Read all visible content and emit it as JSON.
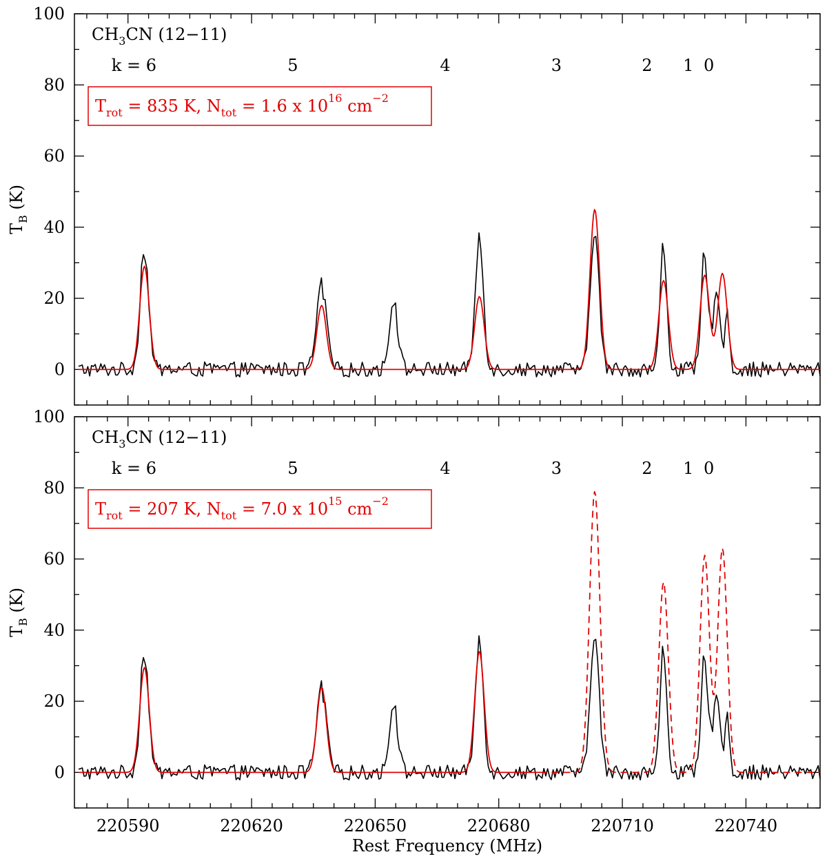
{
  "figure": {
    "xlabel": "Rest Frequency (MHz)",
    "ylabel_main": "T",
    "ylabel_sub": "B",
    "ylabel_unit": " (K)"
  },
  "chart_data": [
    {
      "type": "line",
      "panel": "top",
      "xlim": [
        220577,
        220758
      ],
      "ylim": [
        -10,
        100
      ],
      "xticks": [
        220590,
        220620,
        220650,
        220680,
        220710,
        220740
      ],
      "yticks": [
        0,
        20,
        40,
        60,
        80,
        100
      ],
      "species": {
        "main": "CH",
        "sub": "3",
        "rest": "CN (12−11)"
      },
      "k_labels": [
        {
          "text": "k = 6",
          "freq": 220586
        },
        {
          "text": "5",
          "freq": 220630
        },
        {
          "text": "4",
          "freq": 220667
        },
        {
          "text": "3",
          "freq": 220694
        },
        {
          "text": "2",
          "freq": 220716
        },
        {
          "text": "1",
          "freq": 220726
        },
        {
          "text": "0",
          "freq": 220731
        }
      ],
      "legend": {
        "t_main": "T",
        "t_sub": "rot",
        "t_rest": " = 835 K, N",
        "n_sub": "tot",
        "n_rest": " = 1.6 x 10",
        "exp": "16",
        "unit": " cm",
        "unit_exp": "−2"
      },
      "series": [
        {
          "name": "observed",
          "color": "#000000",
          "style": "solid",
          "peaks": [
            {
              "center": 220594.0,
              "amp": 34,
              "width": 1.0
            },
            {
              "center": 220637.0,
              "amp": 24,
              "width": 1.2
            },
            {
              "center": 220654.5,
              "amp": 20,
              "width": 1.0
            },
            {
              "center": 220675.3,
              "amp": 36,
              "width": 1.0
            },
            {
              "center": 220703.3,
              "amp": 41,
              "width": 1.0
            },
            {
              "center": 220720.0,
              "amp": 34,
              "width": 0.8
            },
            {
              "center": 220730.0,
              "amp": 32,
              "width": 0.8
            },
            {
              "center": 220733.0,
              "amp": 22,
              "width": 0.9
            },
            {
              "center": 220735.5,
              "amp": 16,
              "width": 0.5
            }
          ]
        },
        {
          "name": "model",
          "color": "#e00000",
          "style": "solid",
          "peaks": [
            {
              "center": 220594.0,
              "amp": 29,
              "width": 1.15
            },
            {
              "center": 220637.0,
              "amp": 18,
              "width": 1.15
            },
            {
              "center": 220675.3,
              "amp": 20.5,
              "width": 1.15
            },
            {
              "center": 220703.3,
              "amp": 45,
              "width": 1.15
            },
            {
              "center": 220720.0,
              "amp": 25,
              "width": 1.15
            },
            {
              "center": 220730.0,
              "amp": 26.5,
              "width": 1.15
            },
            {
              "center": 220734.3,
              "amp": 27,
              "width": 1.15
            }
          ]
        }
      ]
    },
    {
      "type": "line",
      "panel": "bottom",
      "xlim": [
        220577,
        220758
      ],
      "ylim": [
        -10,
        100
      ],
      "xticks": [
        220590,
        220620,
        220650,
        220680,
        220710,
        220740
      ],
      "yticks": [
        0,
        20,
        40,
        60,
        80,
        100
      ],
      "species": {
        "main": "CH",
        "sub": "3",
        "rest": "CN (12−11)"
      },
      "k_labels": [
        {
          "text": "k = 6",
          "freq": 220586
        },
        {
          "text": "5",
          "freq": 220630
        },
        {
          "text": "4",
          "freq": 220667
        },
        {
          "text": "3",
          "freq": 220694
        },
        {
          "text": "2",
          "freq": 220716
        },
        {
          "text": "1",
          "freq": 220726
        },
        {
          "text": "0",
          "freq": 220731
        }
      ],
      "legend": {
        "t_main": "T",
        "t_sub": "rot",
        "t_rest": " = 207 K, N",
        "n_sub": "tot",
        "n_rest": " = 7.0 x 10",
        "exp": "15",
        "unit": " cm",
        "unit_exp": "−2"
      },
      "series": [
        {
          "name": "observed",
          "color": "#000000",
          "style": "solid",
          "peaks": [
            {
              "center": 220594.0,
              "amp": 34,
              "width": 1.0
            },
            {
              "center": 220637.0,
              "amp": 24,
              "width": 1.2
            },
            {
              "center": 220654.5,
              "amp": 20,
              "width": 1.0
            },
            {
              "center": 220675.3,
              "amp": 36,
              "width": 1.0
            },
            {
              "center": 220703.3,
              "amp": 41,
              "width": 1.0
            },
            {
              "center": 220720.0,
              "amp": 34,
              "width": 0.8
            },
            {
              "center": 220730.0,
              "amp": 32,
              "width": 0.8
            },
            {
              "center": 220733.0,
              "amp": 22,
              "width": 0.9
            },
            {
              "center": 220735.5,
              "amp": 16,
              "width": 0.5
            }
          ]
        },
        {
          "name": "model-fit",
          "color": "#e00000",
          "style": "solid",
          "xrange": [
            220577,
            220690
          ],
          "peaks": [
            {
              "center": 220594.0,
              "amp": 29.5,
              "width": 1.15
            },
            {
              "center": 220637.0,
              "amp": 24,
              "width": 1.15
            },
            {
              "center": 220675.3,
              "amp": 34,
              "width": 1.15
            }
          ]
        },
        {
          "name": "model-predicted",
          "color": "#e00000",
          "style": "dashed",
          "xrange": [
            220690,
            220758
          ],
          "peaks": [
            {
              "center": 220703.3,
              "amp": 79,
              "width": 1.25
            },
            {
              "center": 220720.0,
              "amp": 53.5,
              "width": 1.15
            },
            {
              "center": 220730.0,
              "amp": 61,
              "width": 1.15
            },
            {
              "center": 220734.3,
              "amp": 63,
              "width": 1.15
            }
          ]
        }
      ]
    }
  ]
}
